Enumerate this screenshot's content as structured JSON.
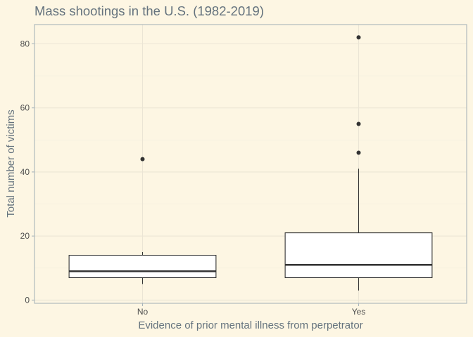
{
  "chart_data": {
    "type": "box",
    "title": "Mass shootings in the U.S. (1982-2019)",
    "xlabel": "Evidence of prior mental illness from perpetrator",
    "ylabel": "Total number of victims",
    "ylim": [
      -1,
      86
    ],
    "y_ticks": [
      0,
      20,
      40,
      60,
      80
    ],
    "grid": true,
    "categories": [
      "No",
      "Yes"
    ],
    "boxes": [
      {
        "category": "No",
        "whisker_low": 5,
        "q1": 7,
        "median": 9,
        "q3": 14,
        "whisker_high": 15,
        "outliers": [
          44
        ]
      },
      {
        "category": "Yes",
        "whisker_low": 3,
        "q1": 7,
        "median": 11,
        "q3": 21,
        "whisker_high": 41,
        "outliers": [
          46,
          55,
          82
        ]
      }
    ],
    "colors": {
      "background": "#fdf6e3",
      "box_fill": "#ffffff",
      "box_line": "#333333",
      "text": "#65737e"
    }
  }
}
